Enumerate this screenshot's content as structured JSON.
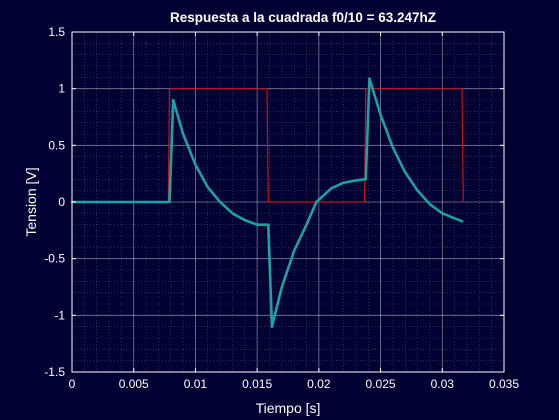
{
  "chart_data": {
    "type": "line",
    "title": "Respuesta a la cuadrada f0/10 = 63.247hZ",
    "xlabel": "Tiempo [s]",
    "ylabel": "Tension [V]",
    "xlim": [
      0,
      0.035
    ],
    "ylim": [
      -1.5,
      1.5
    ],
    "xticks": [
      0,
      0.005,
      0.01,
      0.015,
      0.02,
      0.025,
      0.03,
      0.035
    ],
    "xtick_labels": [
      "0",
      "0.005",
      "0.01",
      "0.015",
      "0.02",
      "0.025",
      "0.03",
      "0.035"
    ],
    "yticks": [
      -1.5,
      -1,
      -0.5,
      0,
      0.5,
      1,
      1.5
    ],
    "ytick_labels": [
      "-1.5",
      "-1",
      "-0.5",
      "0",
      "0.5",
      "1",
      "1.5"
    ],
    "grid": true,
    "minor_grid": true,
    "colors": {
      "background": "#000033",
      "axes_background": "#000033",
      "grid": "#ffffff",
      "axis": "#ffffff"
    },
    "series": [
      {
        "color": "#cc1111",
        "line_width": 1.2,
        "x": [
          0,
          0.0078,
          0.0079,
          0.0158,
          0.0159,
          0.0237,
          0.0238,
          0.0316,
          0.0317
        ],
        "y": [
          0,
          0,
          1,
          1,
          0,
          0,
          1,
          1,
          0
        ]
      },
      {
        "color": "#1aa3a3",
        "line_width": 2.6,
        "x": [
          0,
          0.0079,
          0.0082,
          0.009,
          0.01,
          0.011,
          0.012,
          0.013,
          0.014,
          0.015,
          0.0158,
          0.0159,
          0.0162,
          0.017,
          0.018,
          0.019,
          0.0198,
          0.021,
          0.022,
          0.023,
          0.0237,
          0.0238,
          0.0241,
          0.025,
          0.026,
          0.027,
          0.028,
          0.029,
          0.03,
          0.0316
        ],
        "y": [
          0,
          0,
          0.9,
          0.6,
          0.33,
          0.13,
          0.0,
          -0.1,
          -0.16,
          -0.2,
          -0.2,
          -0.2,
          -1.1,
          -0.75,
          -0.43,
          -0.2,
          -0.0,
          0.12,
          0.17,
          0.19,
          0.2,
          0.2,
          1.09,
          0.77,
          0.48,
          0.26,
          0.1,
          -0.02,
          -0.1,
          -0.17
        ]
      }
    ]
  }
}
